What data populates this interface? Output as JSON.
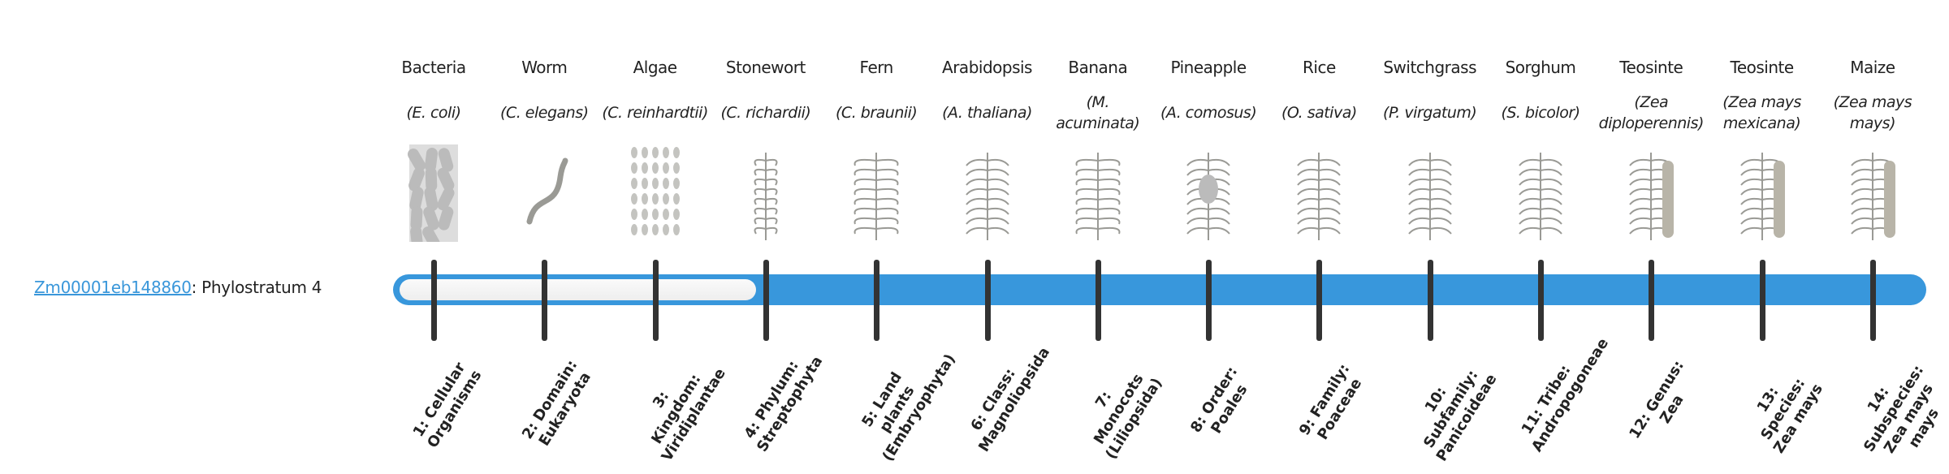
{
  "gene": {
    "id": "Zm00001eb148860",
    "suffix": ": Phylostratum 4",
    "phylostratum": 4
  },
  "colors": {
    "bar": "#3897dc",
    "link": "#3a97da",
    "tick": "#333333"
  },
  "organisms": [
    {
      "name": "Bacteria",
      "species": "(E. coli)",
      "icon": "bacteria-icon"
    },
    {
      "name": "Worm",
      "species": "(C. elegans)",
      "icon": "worm-icon"
    },
    {
      "name": "Algae",
      "species": "(C. reinhardtii)",
      "icon": "algae-icon"
    },
    {
      "name": "Stonewort",
      "species": "(C. richardii)",
      "icon": "stonewort-icon"
    },
    {
      "name": "Fern",
      "species": "(C. braunii)",
      "icon": "fern-icon"
    },
    {
      "name": "Arabidopsis",
      "species": "(A. thaliana)",
      "icon": "arabidopsis-icon"
    },
    {
      "name": "Banana",
      "species": "(M. acuminata)",
      "icon": "banana-icon"
    },
    {
      "name": "Pineapple",
      "species": "(A. comosus)",
      "icon": "pineapple-icon"
    },
    {
      "name": "Rice",
      "species": "(O. sativa)",
      "icon": "rice-icon"
    },
    {
      "name": "Switchgrass",
      "species": "(P. virgatum)",
      "icon": "switchgrass-icon"
    },
    {
      "name": "Sorghum",
      "species": "(S. bicolor)",
      "icon": "sorghum-icon"
    },
    {
      "name": "Teosinte",
      "species": "(Zea diploperennis)",
      "icon": "teosinte-icon"
    },
    {
      "name": "Teosinte",
      "species": "(Zea mays mexicana)",
      "icon": "teosinte-icon"
    },
    {
      "name": "Maize",
      "species": "(Zea mays mays)",
      "icon": "maize-icon"
    }
  ],
  "strata": [
    "1: Cellular Organisms",
    "2: Domain: Eukaryota",
    "3: Kingdom: Viridiplantae",
    "4: Phylum: Streptophyta",
    "5: Land plants (Embryophyta)",
    "6: Class: Magnoliopsida",
    "7: Monocots (Liliopsida)",
    "8: Order: Poales",
    "9: Family: Poaceae",
    "10: Subfamily: Panicoideae",
    "11: Tribe: Andropogoneae",
    "12: Genus: Zea",
    "13: Species: Zea mays",
    "14: Subspecies: Zea mays mays"
  ]
}
